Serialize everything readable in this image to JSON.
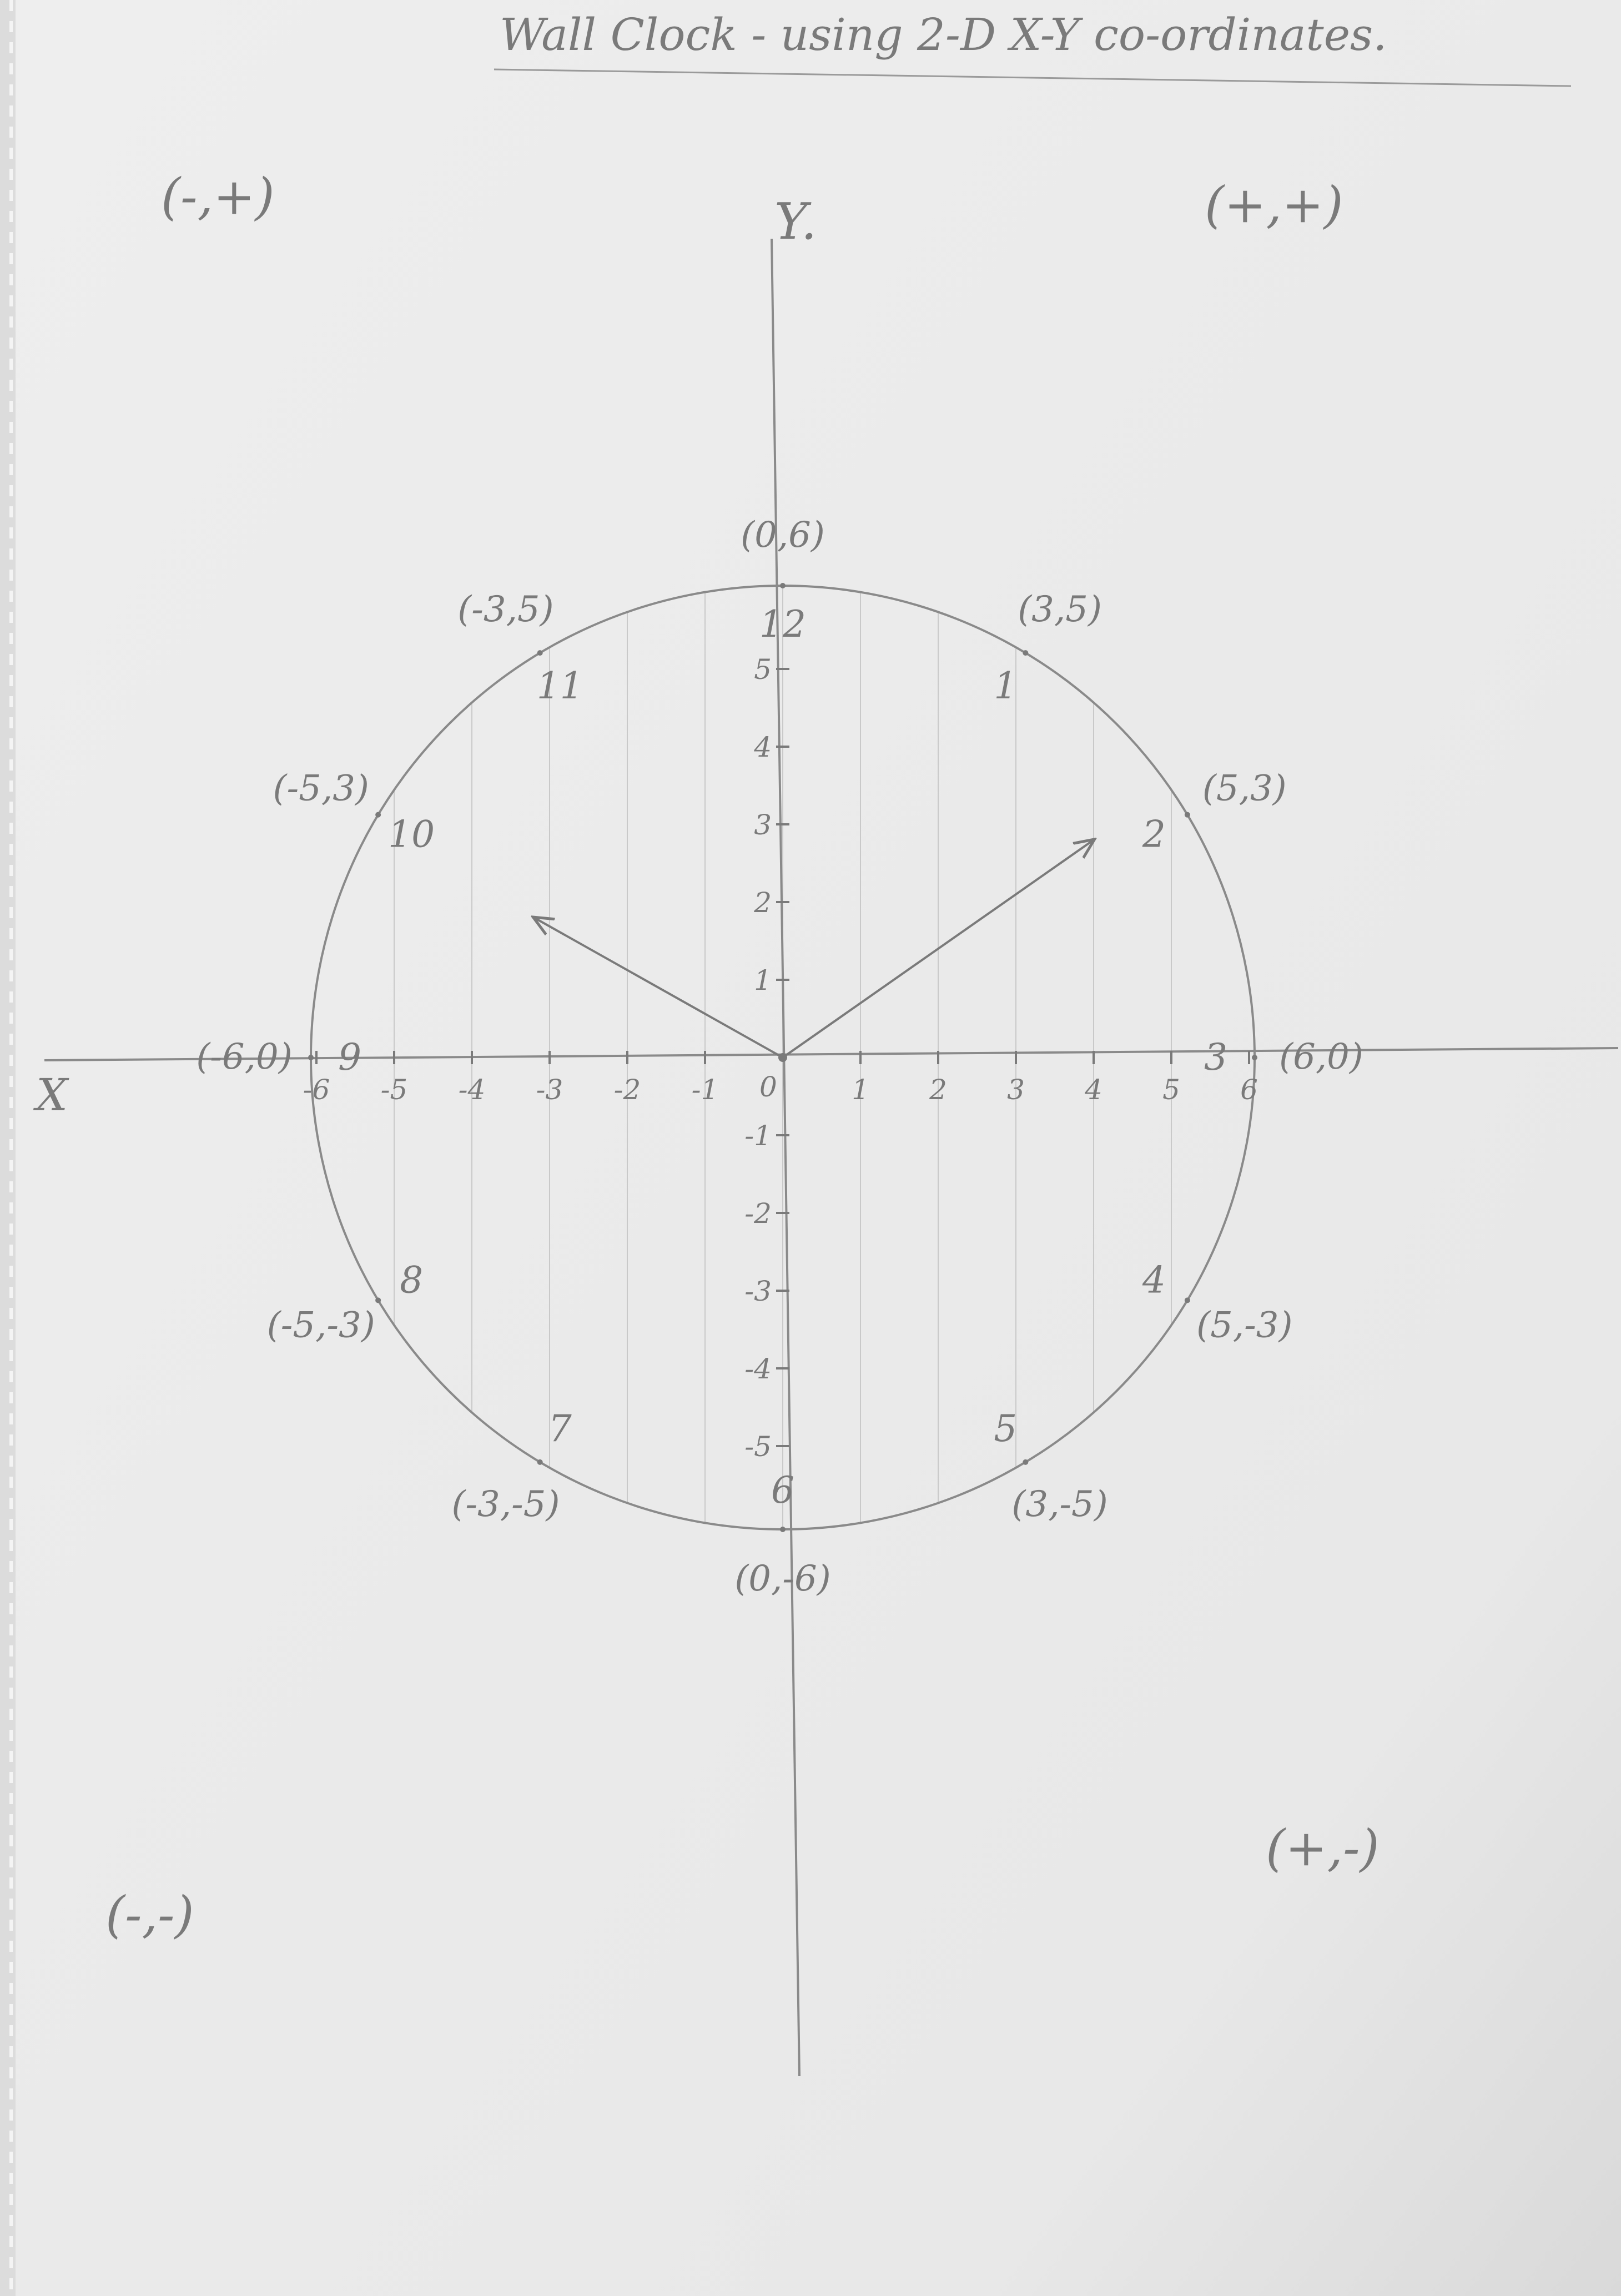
{
  "title": "Wall Clock - using 2-D X-Y co-ordinates.",
  "quadrants": {
    "top_left": "(-,+)",
    "top_right": "(+,+)",
    "bottom_left": "(-,-)",
    "bottom_right": "(+,-)"
  },
  "axes": {
    "x_label": "X",
    "y_label": "Y.",
    "origin": "0",
    "radius": 6
  },
  "x_ticks": [
    -6,
    -5,
    -4,
    -3,
    -2,
    -1,
    1,
    2,
    3,
    4,
    5,
    6
  ],
  "y_ticks": [
    5,
    4,
    3,
    2,
    1,
    -1,
    -2,
    -3,
    -4,
    -5
  ],
  "clock_numbers": [
    {
      "text": "12",
      "x": 0,
      "y": 6
    },
    {
      "text": "1",
      "x": 3,
      "y": 5
    },
    {
      "text": "2",
      "x": 5,
      "y": 3
    },
    {
      "text": "3",
      "x": 6,
      "y": 0
    },
    {
      "text": "4",
      "x": 5,
      "y": -3
    },
    {
      "text": "5",
      "x": 3,
      "y": -5
    },
    {
      "text": "6",
      "x": 0,
      "y": -6
    },
    {
      "text": "7",
      "x": -3,
      "y": -5
    },
    {
      "text": "8",
      "x": -5,
      "y": -3
    },
    {
      "text": "9",
      "x": -6,
      "y": 0
    },
    {
      "text": "10",
      "x": -5,
      "y": 3
    },
    {
      "text": "11",
      "x": -3,
      "y": 5
    }
  ],
  "point_labels": [
    {
      "text": "(0,6)",
      "x": 0,
      "y": 6
    },
    {
      "text": "(3,5)",
      "x": 3,
      "y": 5
    },
    {
      "text": "(5,3)",
      "x": 5,
      "y": 3
    },
    {
      "text": "(6,0)",
      "x": 6,
      "y": 0
    },
    {
      "text": "(5,-3)",
      "x": 5,
      "y": -3
    },
    {
      "text": "(3,-5)",
      "x": 3,
      "y": -5
    },
    {
      "text": "(0,-6)",
      "x": 0,
      "y": -6
    },
    {
      "text": "(-3,-5)",
      "x": -3,
      "y": -5
    },
    {
      "text": "(-5,-3)",
      "x": -5,
      "y": -3
    },
    {
      "text": "(-6,0)",
      "x": -6,
      "y": 0
    },
    {
      "text": "(-5,3)",
      "x": -5,
      "y": 3
    },
    {
      "text": "(-3,5)",
      "x": -3,
      "y": 5
    }
  ],
  "hands": [
    {
      "name": "minute-hand",
      "x": 4,
      "y": 2.8
    },
    {
      "name": "hour-hand",
      "x": -3.2,
      "y": 1.8
    }
  ],
  "colors": {
    "pencil": "#7a7a7a",
    "paper": "#ebebeb"
  }
}
